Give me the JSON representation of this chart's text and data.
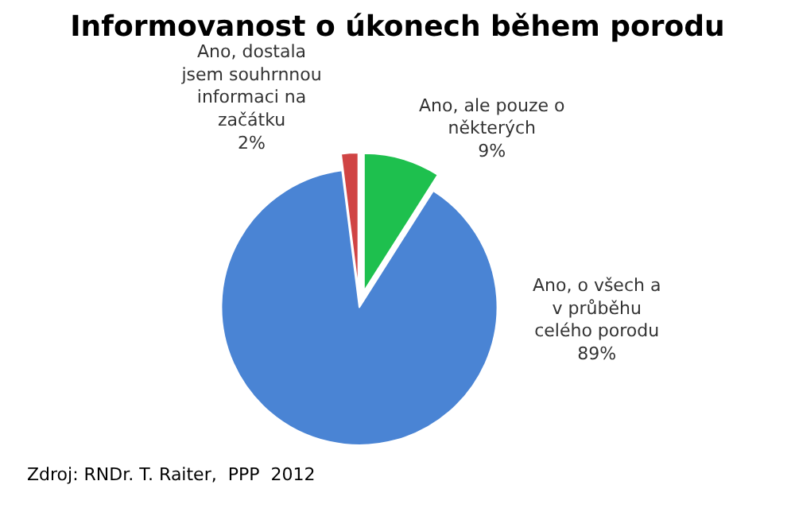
{
  "chart_data": {
    "type": "pie",
    "title": "Informovanost o úkonech během porodu",
    "categories": [
      "Ano, ale pouze o některých",
      "Ano, o všech a v průběhu celého porodu",
      "Ano, dostala jsem souhrnnou informaci na začátku"
    ],
    "values": [
      9,
      89,
      2
    ],
    "colors": [
      "#1ec04e",
      "#4a84d4",
      "#d04444"
    ],
    "value_labels": [
      "9%",
      "89%",
      "2%"
    ],
    "legend": false,
    "annotations": [
      "Zdroj: RNDr. T. Raiter,  PPP  2012"
    ]
  }
}
